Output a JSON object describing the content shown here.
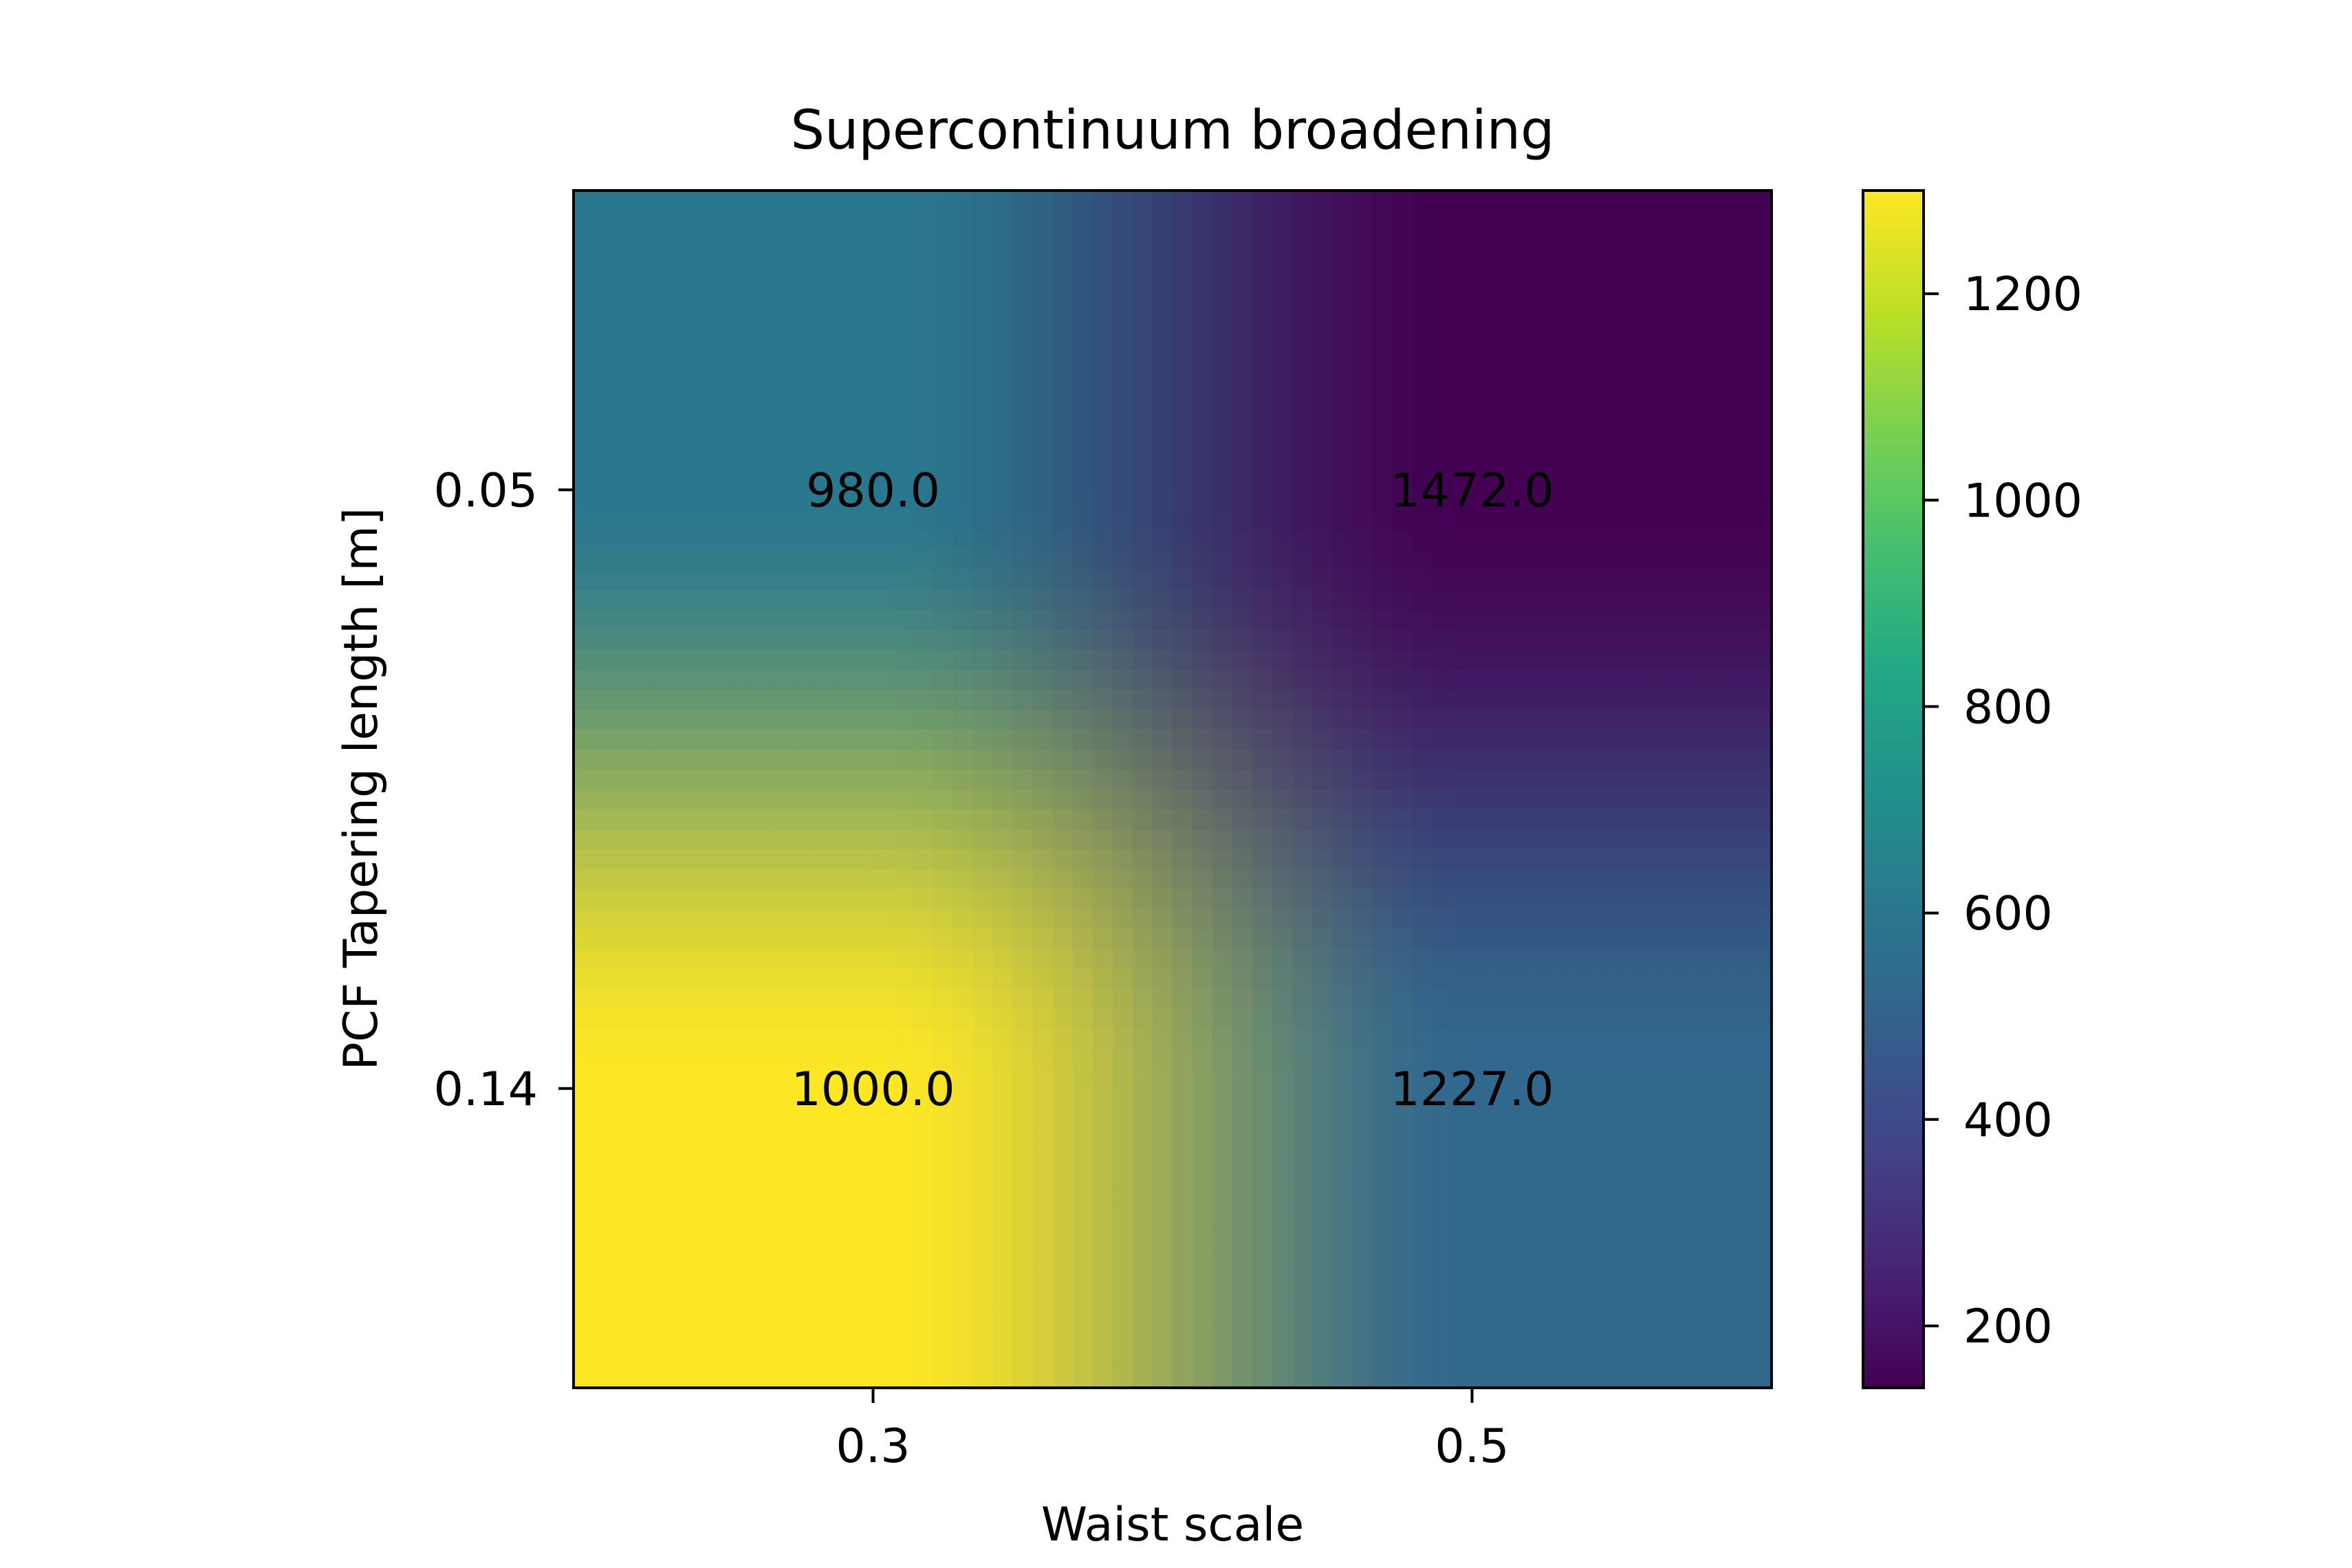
{
  "chart_data": {
    "type": "heatmap",
    "title": "Supercontinuum broadening",
    "xlabel": "Waist scale",
    "ylabel": "PCF Tapering length [m]",
    "x": [
      "0.3",
      "0.5"
    ],
    "y": [
      "0.05",
      "0.14"
    ],
    "values": [
      [
        980.0,
        1472.0
      ],
      [
        1000.0,
        1227.0
      ]
    ],
    "cell_labels": [
      [
        "980.0",
        "1472.0"
      ],
      [
        "1000.0",
        "1227.0"
      ]
    ],
    "interpolation": "bicubic",
    "corner_colors": {
      "top_left": "#2a788e",
      "top_right": "#440154",
      "bottom_left": "#fde725",
      "bottom_right": "#31688e"
    },
    "colorbar": {
      "colormap": "viridis",
      "range": [
        140,
        1300
      ],
      "ticks": [
        200,
        400,
        600,
        800,
        1000,
        1200
      ],
      "tick_labels": [
        "200",
        "400",
        "600",
        "800",
        "1000",
        "1200"
      ]
    }
  }
}
